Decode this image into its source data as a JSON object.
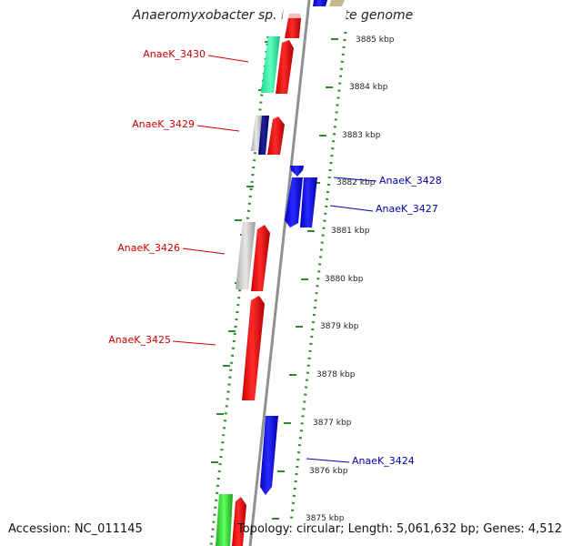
{
  "title": "Anaeromyxobacter sp. K, complete genome",
  "footer": {
    "accession": "Accession: NC_011145",
    "topology": "Topology: circular; Length: 5,061,632 bp; Genes: 4,512"
  },
  "colors": {
    "forward_gene": "#ff0000",
    "reverse_gene": "#0000ff",
    "label_forward": "#cc0000",
    "label_reverse": "#0000aa",
    "tick": "#2e8b2e",
    "backbone": "#909090"
  },
  "scale_ticks": [
    {
      "label": "3885 kbp",
      "pos": 3885
    },
    {
      "label": "3884 kbp",
      "pos": 3884
    },
    {
      "label": "3883 kbp",
      "pos": 3883
    },
    {
      "label": "3882 kbp",
      "pos": 3882
    },
    {
      "label": "3881 kbp",
      "pos": 3881
    },
    {
      "label": "3880 kbp",
      "pos": 3880
    },
    {
      "label": "3879 kbp",
      "pos": 3879
    },
    {
      "label": "3878 kbp",
      "pos": 3878
    },
    {
      "label": "3877 kbp",
      "pos": 3877
    },
    {
      "label": "3876 kbp",
      "pos": 3876
    },
    {
      "label": "3875 kbp",
      "pos": 3875
    }
  ],
  "gene_labels": [
    {
      "label": "AnaeK_3430",
      "strand": "forward"
    },
    {
      "label": "AnaeK_3429",
      "strand": "forward"
    },
    {
      "label": "AnaeK_3428",
      "strand": "reverse"
    },
    {
      "label": "AnaeK_3427",
      "strand": "reverse"
    },
    {
      "label": "AnaeK_3426",
      "strand": "forward"
    },
    {
      "label": "AnaeK_3425",
      "strand": "forward"
    },
    {
      "label": "AnaeK_3424",
      "strand": "reverse"
    }
  ]
}
